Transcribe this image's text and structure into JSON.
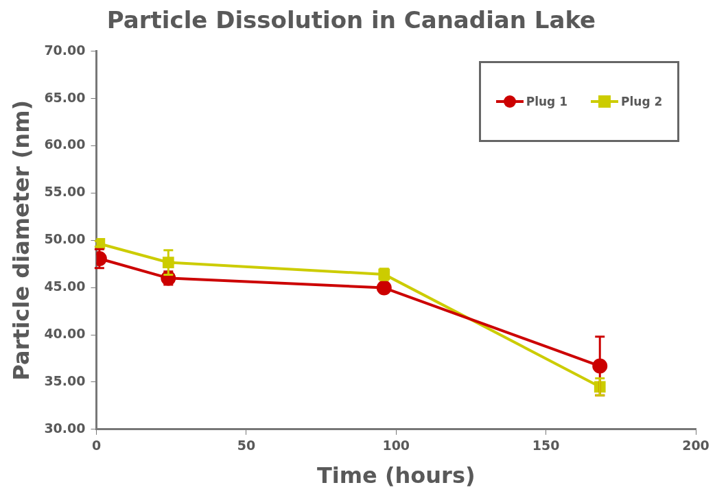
{
  "chart_data": {
    "type": "line",
    "title": "Particle Dissolution in Canadian Lake",
    "xlabel": "Time (hours)",
    "ylabel": "Particle diameter (nm)",
    "x": [
      1,
      24,
      96,
      168
    ],
    "series": [
      {
        "name": "Plug 1",
        "color": "#cc0000",
        "marker": "circle",
        "values": [
          48.06,
          46.0,
          44.97,
          36.7
        ],
        "errors": [
          1.0,
          0.7,
          0.5,
          3.1
        ]
      },
      {
        "name": "Plug 2",
        "color": "#cccc00",
        "marker": "square",
        "values": [
          49.64,
          47.66,
          46.4,
          34.5
        ],
        "errors": [
          0.3,
          1.3,
          0.6,
          0.9
        ]
      }
    ],
    "xlim": [
      0,
      200
    ],
    "xticks": [
      0,
      50,
      100,
      150,
      200
    ],
    "ylim": [
      30,
      70
    ],
    "yticks": [
      {
        "value": 30,
        "label": "30.00"
      },
      {
        "value": 35,
        "label": "35.00"
      },
      {
        "value": 40,
        "label": "40.00"
      },
      {
        "value": 45,
        "label": "45.00"
      },
      {
        "value": 50,
        "label": "50.00"
      },
      {
        "value": 55,
        "label": "55.00"
      },
      {
        "value": 60,
        "label": "60.00"
      },
      {
        "value": 65,
        "label": "65.00"
      },
      {
        "value": 70,
        "label": "70.00"
      }
    ],
    "grid": false,
    "legend": "top right",
    "line_style": "solid"
  }
}
